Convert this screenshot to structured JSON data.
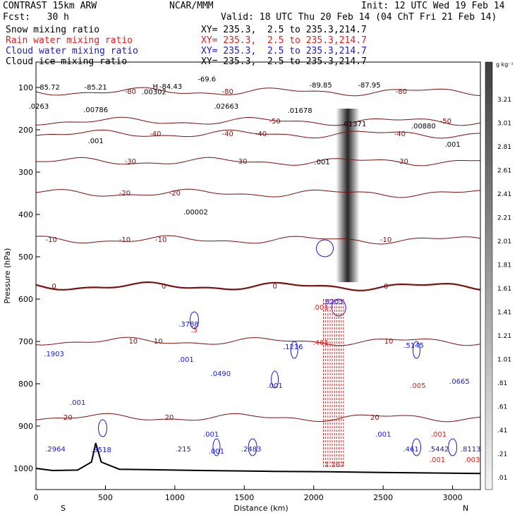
{
  "header": {
    "model": "CONTRAST 15km ARW",
    "org": "NCAR/MMM",
    "init": "Init: 12 UTC Wed 19 Feb 14",
    "fcst": "Fcst:   30 h",
    "valid": "Valid: 18 UTC Thu 20 Feb 14 (04 ChT Fri 21 Feb 14)"
  },
  "legend": [
    {
      "label": "Snow mixing ratio",
      "xy": "XY= 235.3,  2.5 to 235.3,214.7",
      "color": "#000000"
    },
    {
      "label": "Rain water mixing ratio",
      "xy": "XY= 235.3,  2.5 to 235.3,214.7",
      "color": "#e02020"
    },
    {
      "label": "Cloud water mixing ratio",
      "xy": "XY= 235.3,  2.5 to 235.3,214.7",
      "color": "#1a1ad0"
    },
    {
      "label": "Cloud ice mixing ratio",
      "xy": "XY= 235.3,  2.5 to 235.3,214.7",
      "color": "#000000"
    }
  ],
  "chart_data": {
    "type": "contour",
    "xlabel": "Distance (km)",
    "ylabel": "Pressure (hPa)",
    "xlim": [
      0,
      3200
    ],
    "ylim": [
      1050,
      40
    ],
    "x_ticks": [
      0,
      500,
      1000,
      1500,
      2000,
      2500,
      3000
    ],
    "y_ticks": [
      100,
      200,
      300,
      400,
      500,
      600,
      700,
      800,
      900,
      1000
    ],
    "x_end_labels": {
      "left": "S",
      "right": "N"
    },
    "colorbar": {
      "unit": "g kg⁻¹",
      "labels": [
        "3.21",
        "3.01",
        "2.81",
        "2.61",
        "2.41",
        "2.21",
        "2.01",
        "1.81",
        "1.61",
        "1.41",
        "1.21",
        "1.01",
        ".81",
        ".61",
        ".41",
        ".21",
        ".01"
      ]
    },
    "temperature_isotherms_C": [
      {
        "level": -80,
        "p": 110,
        "labels": [
          {
            "x": 680,
            "text": "-80"
          },
          {
            "x": 1380,
            "text": "-80"
          },
          {
            "x": 2630,
            "text": "-80"
          }
        ]
      },
      {
        "level": -50,
        "p": 180,
        "labels": [
          {
            "x": 1720,
            "text": "-50"
          },
          {
            "x": 2950,
            "text": "-50"
          }
        ]
      },
      {
        "level": -40,
        "p": 210,
        "labels": [
          {
            "x": 860,
            "text": "-40"
          },
          {
            "x": 1380,
            "text": "-40"
          },
          {
            "x": 1620,
            "text": "-40"
          },
          {
            "x": 2620,
            "text": "-40"
          }
        ]
      },
      {
        "level": -30,
        "p": 275,
        "labels": [
          {
            "x": 680,
            "text": "-30"
          },
          {
            "x": 1480,
            "text": "-30"
          },
          {
            "x": 2640,
            "text": "-30"
          }
        ]
      },
      {
        "level": -20,
        "p": 350,
        "labels": [
          {
            "x": 640,
            "text": "-20"
          },
          {
            "x": 1000,
            "text": "-20"
          }
        ]
      },
      {
        "level": -10,
        "p": 460,
        "labels": [
          {
            "x": 110,
            "text": "-10"
          },
          {
            "x": 640,
            "text": "-10"
          },
          {
            "x": 900,
            "text": "-10"
          },
          {
            "x": 2520,
            "text": "-10"
          }
        ]
      },
      {
        "level": 0,
        "p": 570,
        "labels": [
          {
            "x": 130,
            "text": "0"
          },
          {
            "x": 920,
            "text": "0"
          },
          {
            "x": 1720,
            "text": "0"
          },
          {
            "x": 2520,
            "text": "0"
          }
        ]
      },
      {
        "level": 10,
        "p": 700,
        "labels": [
          {
            "x": 700,
            "text": "10"
          },
          {
            "x": 880,
            "text": "10"
          },
          {
            "x": 2540,
            "text": "10"
          }
        ]
      },
      {
        "level": 20,
        "p": 880,
        "labels": [
          {
            "x": 230,
            "text": "20"
          },
          {
            "x": 960,
            "text": "20"
          },
          {
            "x": 2440,
            "text": "20"
          }
        ]
      }
    ],
    "point_labels": [
      {
        "x": 90,
        "p": 105,
        "text": "-85.72",
        "color": "#000000"
      },
      {
        "x": 430,
        "p": 105,
        "text": "-85.21",
        "color": "#000000"
      },
      {
        "x": 860,
        "p": 103,
        "text": "H",
        "color": "#000000"
      },
      {
        "x": 970,
        "p": 103,
        "text": "-84.43",
        "color": "#000000"
      },
      {
        "x": 1230,
        "p": 86,
        "text": "-69.6",
        "color": "#000000"
      },
      {
        "x": 2050,
        "p": 100,
        "text": "-89.85",
        "color": "#000000"
      },
      {
        "x": 2400,
        "p": 100,
        "text": "-87.95",
        "color": "#000000"
      },
      {
        "x": 850,
        "p": 116,
        "text": ".00302",
        "color": "#000000"
      },
      {
        "x": 20,
        "p": 150,
        "text": ".0263",
        "color": "#000000"
      },
      {
        "x": 430,
        "p": 158,
        "text": ".00786",
        "color": "#000000"
      },
      {
        "x": 1370,
        "p": 150,
        "text": ".02663",
        "color": "#000000"
      },
      {
        "x": 1900,
        "p": 160,
        "text": ".01678",
        "color": "#000000"
      },
      {
        "x": 2290,
        "p": 192,
        "text": ".01371",
        "color": "#000000"
      },
      {
        "x": 2790,
        "p": 197,
        "text": ".00880",
        "color": "#000000"
      },
      {
        "x": 430,
        "p": 232,
        "text": ".001",
        "color": "#000000"
      },
      {
        "x": 2060,
        "p": 282,
        "text": ".001",
        "color": "#000000"
      },
      {
        "x": 3000,
        "p": 240,
        "text": ".001",
        "color": "#000000"
      },
      {
        "x": 1150,
        "p": 400,
        "text": ".00002",
        "color": "#000000"
      },
      {
        "x": 1100,
        "p": 665,
        "text": ".3788",
        "color": "#1a1ad0"
      },
      {
        "x": 2140,
        "p": 612,
        "text": ".8203",
        "color": "#1a1ad0"
      },
      {
        "x": 1850,
        "p": 718,
        "text": ".1216",
        "color": "#1a1ad0"
      },
      {
        "x": 2720,
        "p": 715,
        "text": ".5145",
        "color": "#1a1ad0"
      },
      {
        "x": 130,
        "p": 735,
        "text": ".1903",
        "color": "#1a1ad0"
      },
      {
        "x": 1080,
        "p": 748,
        "text": ".001",
        "color": "#1a1ad0"
      },
      {
        "x": 1330,
        "p": 782,
        "text": ".0490",
        "color": "#1a1ad0"
      },
      {
        "x": 3050,
        "p": 800,
        "text": ".0665",
        "color": "#1a1ad0"
      },
      {
        "x": 1720,
        "p": 810,
        "text": ".001",
        "color": "#1a1ad0"
      },
      {
        "x": 300,
        "p": 850,
        "text": ".001",
        "color": "#1a1ad0"
      },
      {
        "x": 1260,
        "p": 925,
        "text": ".001",
        "color": "#1a1ad0"
      },
      {
        "x": 2500,
        "p": 925,
        "text": ".001",
        "color": "#1a1ad0"
      },
      {
        "x": 140,
        "p": 960,
        "text": ".2964",
        "color": "#1a1ad0"
      },
      {
        "x": 470,
        "p": 962,
        "text": ".3518",
        "color": "#1a1ad0"
      },
      {
        "x": 1060,
        "p": 960,
        "text": ".215",
        "color": "#1a1ad0"
      },
      {
        "x": 1550,
        "p": 960,
        "text": ".2483",
        "color": "#1a1ad0"
      },
      {
        "x": 1300,
        "p": 965,
        "text": ".001",
        "color": "#1a1ad0"
      },
      {
        "x": 2700,
        "p": 960,
        "text": ".461",
        "color": "#1a1ad0"
      },
      {
        "x": 2900,
        "p": 960,
        "text": ".5442",
        "color": "#1a1ad0"
      },
      {
        "x": 3130,
        "p": 960,
        "text": ".8113",
        "color": "#1a1ad0"
      },
      {
        "x": 1140,
        "p": 678,
        "text": ".5",
        "color": "#e02020"
      },
      {
        "x": 2050,
        "p": 625,
        "text": ".001",
        "color": "#e02020"
      },
      {
        "x": 2050,
        "p": 708,
        "text": ".461",
        "color": "#e02020"
      },
      {
        "x": 2750,
        "p": 810,
        "text": ".005",
        "color": "#e02020"
      },
      {
        "x": 2900,
        "p": 925,
        "text": ".001",
        "color": "#e02020"
      },
      {
        "x": 2890,
        "p": 985,
        "text": ".001",
        "color": "#e02020"
      },
      {
        "x": 3140,
        "p": 985,
        "text": ".003",
        "color": "#e02020"
      },
      {
        "x": 2150,
        "p": 997,
        "text": "1.167",
        "color": "#e02020"
      }
    ]
  }
}
